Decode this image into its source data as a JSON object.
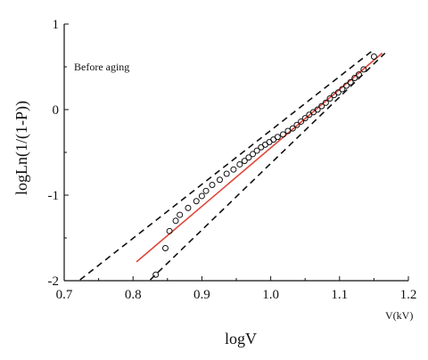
{
  "chart_data": {
    "type": "scatter",
    "title": "",
    "xlabel": "logV",
    "ylabel": "logLn(1/(1-P))",
    "xlim": [
      0.7,
      1.2
    ],
    "ylim": [
      -2,
      1
    ],
    "xticks": [
      "0.7",
      "0.8",
      "0.9",
      "1.0",
      "1.1",
      "1.2"
    ],
    "yticks": [
      "-2",
      "-1",
      "0",
      "1"
    ],
    "annotation": "Before aging",
    "corner_label": "V(kV)",
    "grid": false,
    "colors": {
      "fit_line": "#e0473a",
      "bounds": "#111111",
      "points": "#111111",
      "axes": "#111111"
    },
    "series": [
      {
        "kind": "points",
        "x": [
          0.833,
          0.847,
          0.853,
          0.862,
          0.868,
          0.88,
          0.892,
          0.9,
          0.906,
          0.915,
          0.926,
          0.936,
          0.946,
          0.955,
          0.962,
          0.968,
          0.974,
          0.98,
          0.986,
          0.992,
          0.998,
          1.004,
          1.01,
          1.018,
          1.025,
          1.032,
          1.038,
          1.044,
          1.05,
          1.056,
          1.062,
          1.068,
          1.074,
          1.08,
          1.086,
          1.092,
          1.098,
          1.104,
          1.11,
          1.116,
          1.122,
          1.128,
          1.135,
          1.15
        ],
        "y": [
          -1.93,
          -1.62,
          -1.42,
          -1.3,
          -1.23,
          -1.15,
          -1.07,
          -1.01,
          -0.95,
          -0.88,
          -0.82,
          -0.75,
          -0.7,
          -0.64,
          -0.6,
          -0.56,
          -0.52,
          -0.48,
          -0.44,
          -0.41,
          -0.38,
          -0.35,
          -0.32,
          -0.29,
          -0.25,
          -0.22,
          -0.18,
          -0.14,
          -0.1,
          -0.06,
          -0.03,
          0.0,
          0.04,
          0.08,
          0.13,
          0.17,
          0.2,
          0.24,
          0.28,
          0.32,
          0.37,
          0.41,
          0.47,
          0.62
        ]
      },
      {
        "kind": "fit",
        "x": [
          0.805,
          1.162
        ],
        "y": [
          -1.78,
          0.66
        ]
      },
      {
        "kind": "upper-bound",
        "x": [
          0.723,
          1.148
        ],
        "y": [
          -1.99,
          0.69
        ]
      },
      {
        "kind": "lower-bound",
        "x": [
          0.825,
          1.166
        ],
        "y": [
          -1.99,
          0.66
        ]
      }
    ]
  }
}
